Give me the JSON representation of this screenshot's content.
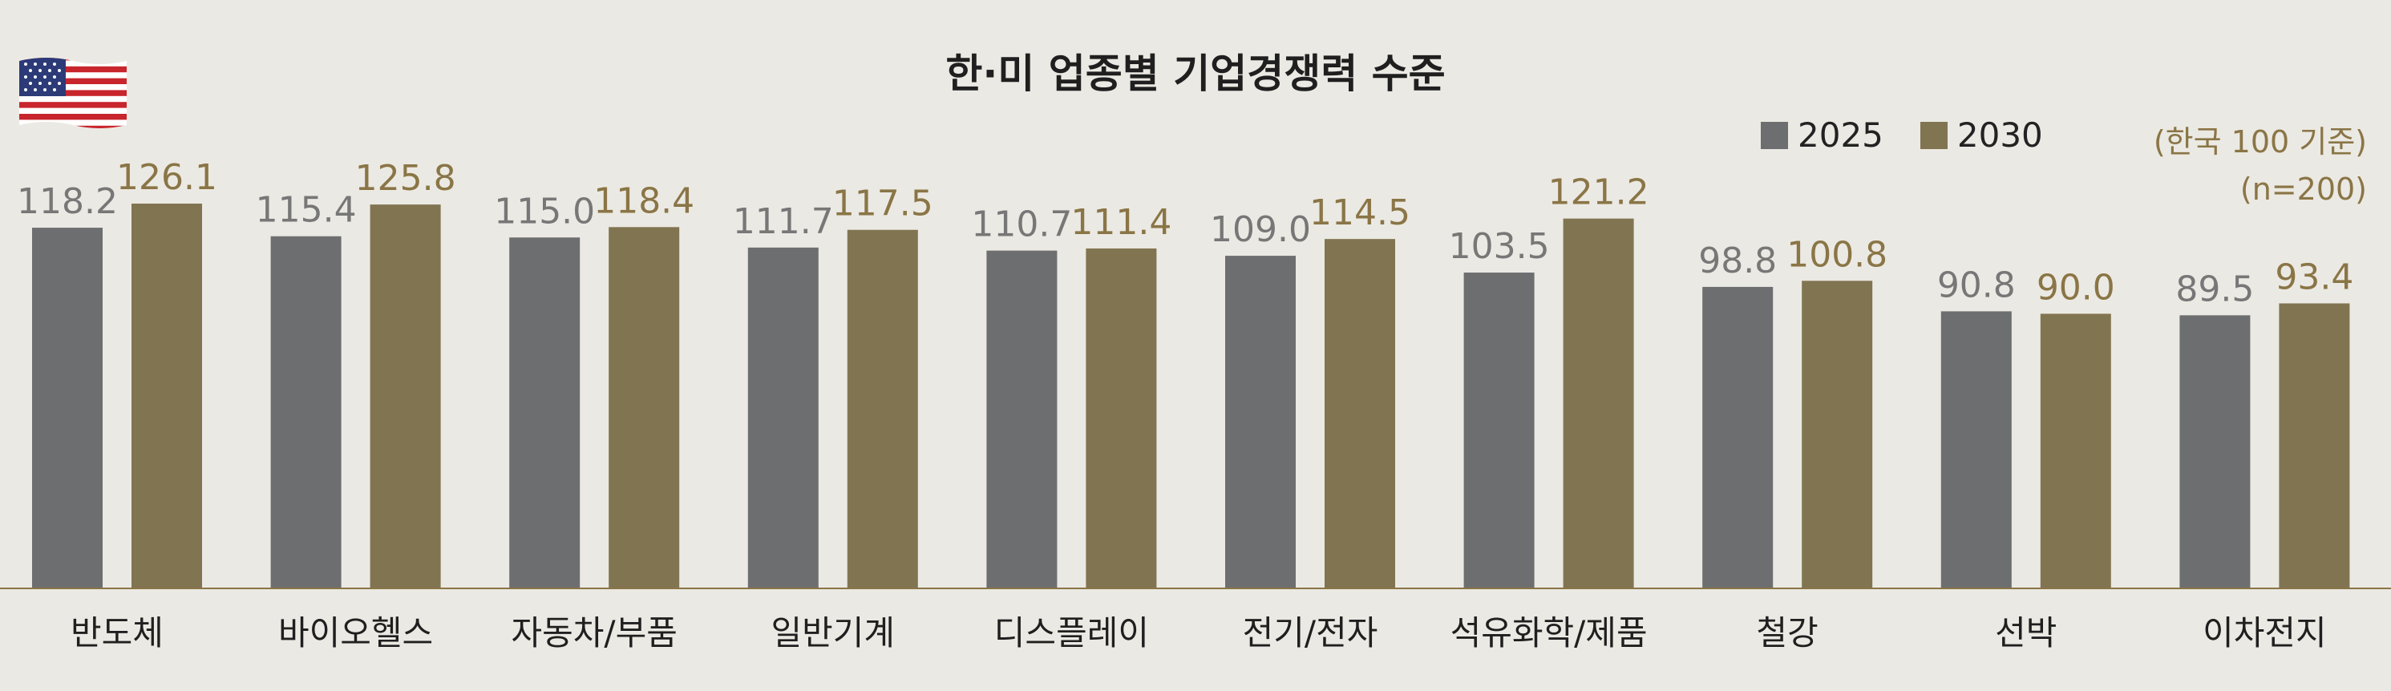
{
  "chart_data": {
    "type": "bar",
    "title": "한·미 업종별 기업경쟁력 수준",
    "note": "(한국 100 기준)",
    "sample": "(n=200)",
    "categories": [
      "반도체",
      "바이오헬스",
      "자동차/부품",
      "일반기계",
      "디스플레이",
      "전기/전자",
      "석유화학/제품",
      "철강",
      "선박",
      "이차전지"
    ],
    "series": [
      {
        "name": "2025",
        "color": "#6d6e70",
        "values": [
          118.2,
          115.4,
          115.0,
          111.7,
          110.7,
          109.0,
          103.5,
          98.8,
          90.8,
          89.5
        ]
      },
      {
        "name": "2030",
        "color": "#817451",
        "values": [
          126.1,
          125.8,
          118.4,
          117.5,
          111.4,
          114.5,
          121.2,
          100.8,
          90.0,
          93.4
        ]
      }
    ],
    "value_label_colors": {
      "2025": "#777777",
      "2030": "#8a7546"
    },
    "ylim": [
      0,
      130
    ],
    "xlabel": "",
    "ylabel": "",
    "grid": false,
    "legend_position": "top-right"
  },
  "icons": {
    "flag": "us-flag-icon"
  }
}
